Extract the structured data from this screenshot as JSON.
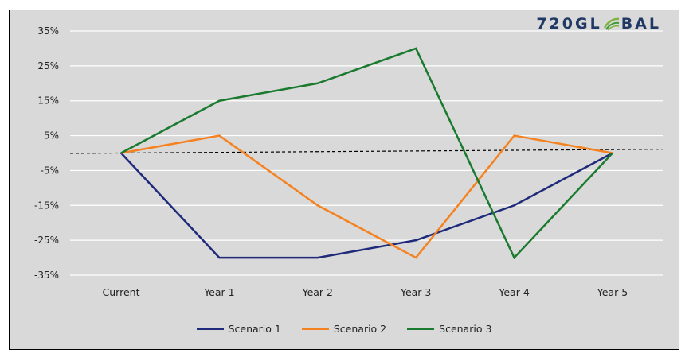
{
  "brand": {
    "logo_left": "720GL",
    "logo_right": "BAL"
  },
  "chart_data": {
    "type": "line",
    "categories": [
      "Current",
      "Year 1",
      "Year 2",
      "Year 3",
      "Year 4",
      "Year 5"
    ],
    "y_ticks": [
      "35%",
      "25%",
      "15%",
      "5%",
      "-5%",
      "-15%",
      "-25%",
      "-35%"
    ],
    "y_tick_values": [
      35,
      25,
      15,
      5,
      -5,
      -15,
      -25,
      -35
    ],
    "ylim": [
      -35,
      35
    ],
    "grid": true,
    "legend_position": "bottom",
    "series": [
      {
        "name": "Scenario 1",
        "color": "#1f2a7a",
        "values": [
          0,
          -30,
          -30,
          -25,
          -15,
          0
        ]
      },
      {
        "name": "Scenario 2",
        "color": "#f58220",
        "values": [
          0,
          5,
          -15,
          -30,
          5,
          0
        ]
      },
      {
        "name": "Scenario 3",
        "color": "#1a7a2e",
        "values": [
          0,
          15,
          20,
          30,
          -30,
          0
        ]
      }
    ],
    "reference_line": {
      "style": "dashed",
      "color": "#000000",
      "values": [
        0,
        0.2,
        0.4,
        0.6,
        0.8,
        1.0
      ]
    }
  }
}
